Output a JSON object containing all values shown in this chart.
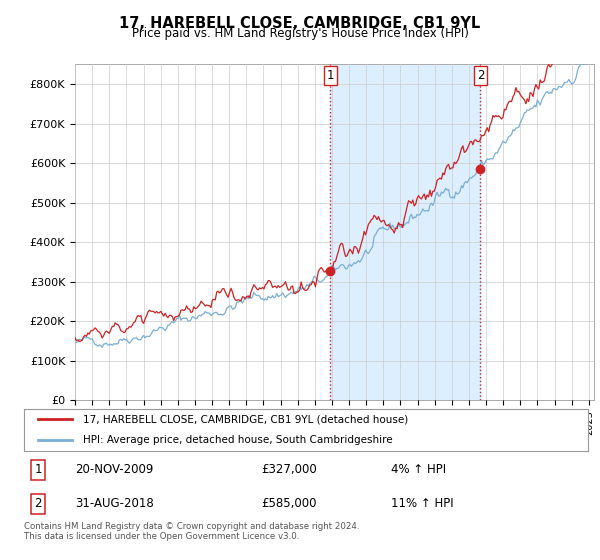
{
  "title": "17, HAREBELL CLOSE, CAMBRIDGE, CB1 9YL",
  "subtitle": "Price paid vs. HM Land Registry's House Price Index (HPI)",
  "ylim": [
    0,
    850000
  ],
  "yticks": [
    0,
    100000,
    200000,
    300000,
    400000,
    500000,
    600000,
    700000,
    800000
  ],
  "ytick_labels": [
    "£0",
    "£100K",
    "£200K",
    "£300K",
    "£400K",
    "£500K",
    "£600K",
    "£700K",
    "£800K"
  ],
  "x_start_year": 1995,
  "x_end_year": 2025,
  "hpi_color": "#7aaed6",
  "sale_color": "#cc2222",
  "shade_color": "#ddeeff",
  "sale_points": [
    {
      "year": 2009.9,
      "value": 327000,
      "label": "1"
    },
    {
      "year": 2018.67,
      "value": 585000,
      "label": "2"
    }
  ],
  "vline_color": "#cc2222",
  "vline_style": ":",
  "legend_entries": [
    "17, HAREBELL CLOSE, CAMBRIDGE, CB1 9YL (detached house)",
    "HPI: Average price, detached house, South Cambridgeshire"
  ],
  "table_rows": [
    {
      "label": "1",
      "date": "20-NOV-2009",
      "price": "£327,000",
      "hpi": "4% ↑ HPI"
    },
    {
      "label": "2",
      "date": "31-AUG-2018",
      "price": "£585,000",
      "hpi": "11% ↑ HPI"
    }
  ],
  "footnote": "Contains HM Land Registry data © Crown copyright and database right 2024.\nThis data is licensed under the Open Government Licence v3.0.",
  "bg_color": "#ffffff",
  "plot_bg_color": "#ffffff",
  "grid_color": "#cccccc"
}
